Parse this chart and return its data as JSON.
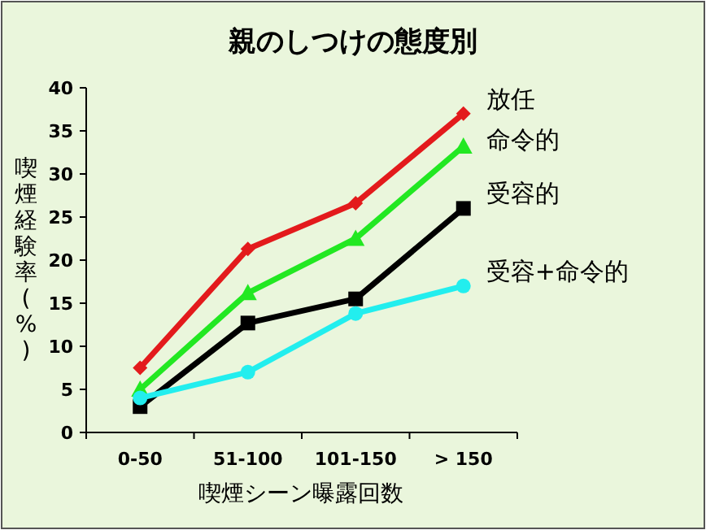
{
  "chart_data": {
    "type": "line",
    "title": "親のしつけの態度別",
    "xlabel": "喫煙シーン曝露回数",
    "ylabel": "喫煙経験率(%)",
    "categories": [
      "0-50",
      "51-100",
      "101-150",
      "> 150"
    ],
    "ylim": [
      0,
      40
    ],
    "yticks": [
      0,
      5,
      10,
      15,
      20,
      25,
      30,
      35,
      40
    ],
    "legend": false,
    "grid": false,
    "series": [
      {
        "name": "放任",
        "color": "#e31a1c",
        "marker": "diamond",
        "values": [
          7.5,
          21.3,
          26.6,
          37
        ]
      },
      {
        "name": "命令的",
        "color": "#22e822",
        "marker": "triangle",
        "values": [
          5,
          16.2,
          22.5,
          33.2
        ]
      },
      {
        "name": "受容的",
        "color": "#000000",
        "marker": "square",
        "values": [
          3,
          12.7,
          15.5,
          26
        ]
      },
      {
        "name": "受容+命令的",
        "color": "#22eeee",
        "marker": "circle",
        "values": [
          4,
          7,
          13.8,
          17
        ]
      }
    ]
  }
}
